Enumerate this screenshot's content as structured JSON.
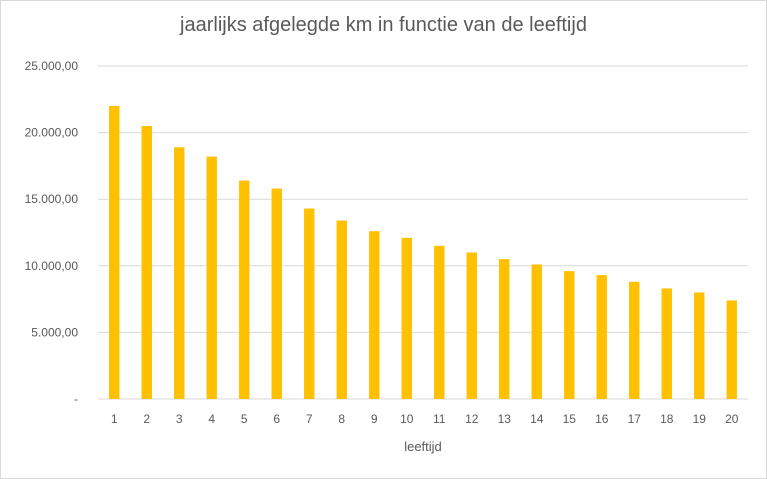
{
  "chart_data": {
    "type": "bar",
    "title": "jaarlijks afgelegde km in functie van de leeftijd",
    "xlabel": "leeftijd",
    "ylabel": "",
    "categories": [
      "1",
      "2",
      "3",
      "4",
      "5",
      "6",
      "7",
      "8",
      "9",
      "10",
      "11",
      "12",
      "13",
      "14",
      "15",
      "16",
      "17",
      "18",
      "19",
      "20"
    ],
    "values": [
      22000,
      20500,
      18900,
      18200,
      16400,
      15800,
      14300,
      13400,
      12600,
      12100,
      11500,
      11000,
      10500,
      10100,
      9600,
      9300,
      8800,
      8300,
      8000,
      7400
    ],
    "ylim": [
      0,
      25000
    ],
    "yticks": [
      0,
      5000,
      10000,
      15000,
      20000,
      25000
    ],
    "ytick_labels": [
      "-",
      "5.000,00",
      "10.000,00",
      "15.000,00",
      "20.000,00",
      "25.000,00"
    ],
    "grid": true,
    "legend": "none",
    "bar_color": "#FFC000",
    "grid_color": "#D9D9D9"
  }
}
